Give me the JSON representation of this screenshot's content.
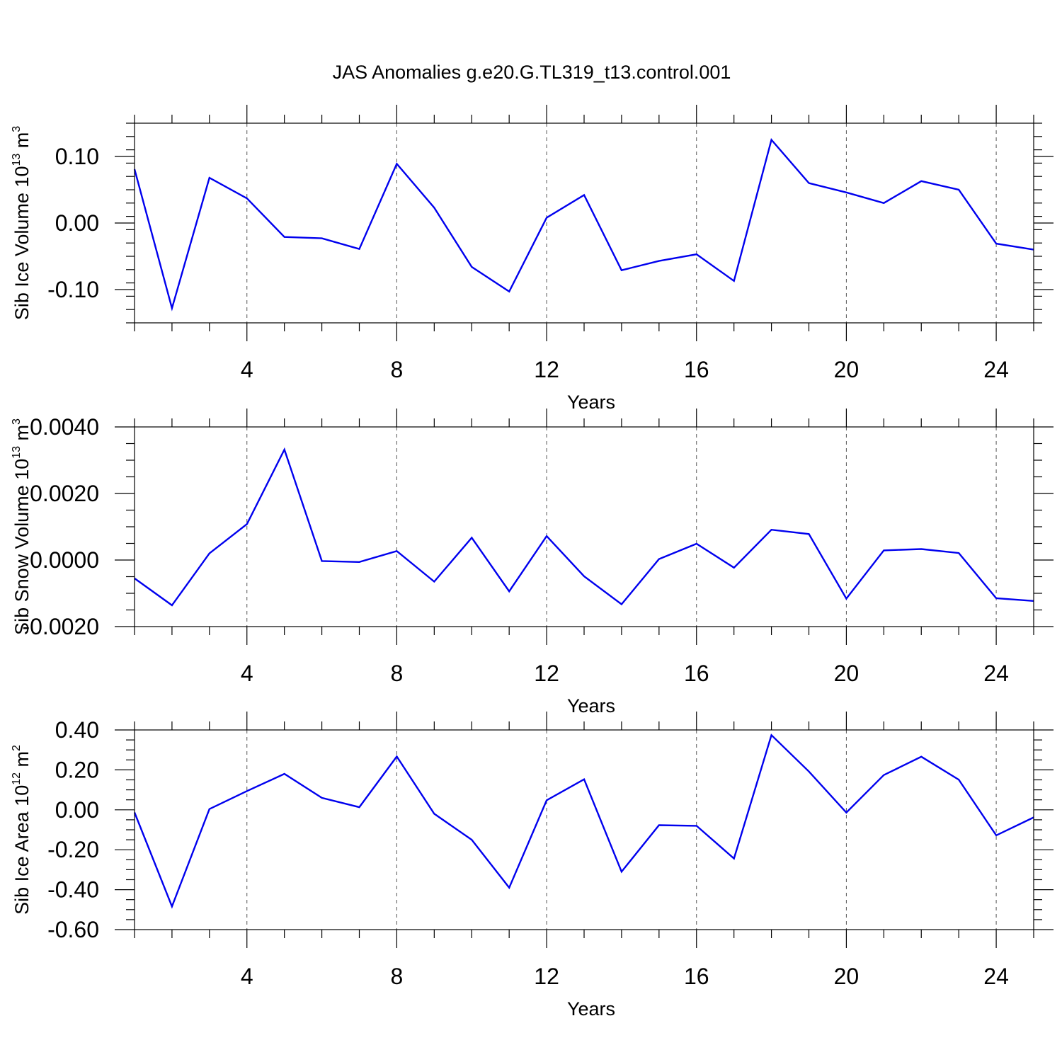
{
  "title": "JAS Anomalies g.e20.G.TL319_t13.control.001",
  "chart_data": [
    {
      "type": "line",
      "name": "ice-volume",
      "ylabel": "Sib Ice Volume 10",
      "ylabel_sup": "13",
      "ylabel_unit": "m",
      "ylabel_unit_sup": "3",
      "xlabel": "Years",
      "xlim": [
        1,
        25
      ],
      "ylim": [
        -0.15,
        0.15
      ],
      "x_ticks": [
        4,
        8,
        12,
        16,
        20,
        24
      ],
      "x_tick_labels": [
        "4",
        "8",
        "12",
        "16",
        "20",
        "24"
      ],
      "y_ticks": [
        -0.1,
        0.0,
        0.1
      ],
      "y_tick_labels": [
        "-0.10",
        "0.00",
        "0.10"
      ],
      "y_minor_step": 0.02,
      "grid": "vertical dashed",
      "x": [
        1,
        2,
        3,
        4,
        5,
        6,
        7,
        8,
        9,
        10,
        11,
        12,
        13,
        14,
        15,
        16,
        17,
        18,
        19,
        20,
        21,
        22,
        23,
        24,
        25
      ],
      "values": [
        0.081,
        -0.128,
        0.068,
        0.037,
        -0.021,
        -0.023,
        -0.039,
        0.089,
        0.023,
        -0.066,
        -0.103,
        0.008,
        0.042,
        -0.071,
        -0.057,
        -0.047,
        -0.087,
        0.125,
        0.06,
        0.046,
        0.03,
        0.063,
        0.05,
        -0.031,
        -0.04
      ],
      "color": "#0000ee"
    },
    {
      "type": "line",
      "name": "snow-volume",
      "ylabel": "Sib Snow Volume 10",
      "ylabel_sup": "13",
      "ylabel_unit": "m",
      "ylabel_unit_sup": "3",
      "xlabel": "Years",
      "xlim": [
        1,
        25
      ],
      "ylim": [
        -0.002,
        0.004
      ],
      "x_ticks": [
        4,
        8,
        12,
        16,
        20,
        24
      ],
      "x_tick_labels": [
        "4",
        "8",
        "12",
        "16",
        "20",
        "24"
      ],
      "y_ticks": [
        -0.002,
        0.0,
        0.002,
        0.004
      ],
      "y_tick_labels": [
        "-0.0020",
        "0.0000",
        "0.0020",
        "0.0040"
      ],
      "y_minor_step": 0.0005,
      "grid": "vertical dashed",
      "x": [
        1,
        2,
        3,
        4,
        5,
        6,
        7,
        8,
        9,
        10,
        11,
        12,
        13,
        14,
        15,
        16,
        17,
        18,
        19,
        20,
        21,
        22,
        23,
        24,
        25
      ],
      "values": [
        -0.00055,
        -0.00136,
        0.0002,
        0.00108,
        0.00332,
        -3e-05,
        -6e-05,
        0.00027,
        -0.00065,
        0.00067,
        -0.00094,
        0.00072,
        -0.00049,
        -0.00133,
        3e-05,
        0.00049,
        -0.00023,
        0.00091,
        0.00078,
        -0.00116,
        0.00029,
        0.00033,
        0.00021,
        -0.00115,
        -0.00123
      ],
      "color": "#0000ee"
    },
    {
      "type": "line",
      "name": "ice-area",
      "ylabel": "Sib Ice Area 10",
      "ylabel_sup": "12",
      "ylabel_unit": "m",
      "ylabel_unit_sup": "2",
      "xlabel": "Years",
      "xlim": [
        1,
        25
      ],
      "ylim": [
        -0.6,
        0.4
      ],
      "x_ticks": [
        4,
        8,
        12,
        16,
        20,
        24
      ],
      "x_tick_labels": [
        "4",
        "8",
        "12",
        "16",
        "20",
        "24"
      ],
      "y_ticks": [
        -0.6,
        -0.4,
        -0.2,
        0.0,
        0.2,
        0.4
      ],
      "y_tick_labels": [
        "-0.60",
        "-0.40",
        "-0.20",
        "0.00",
        "0.20",
        "0.40"
      ],
      "y_minor_step": 0.05,
      "grid": "vertical dashed",
      "x": [
        1,
        2,
        3,
        4,
        5,
        6,
        7,
        8,
        9,
        10,
        11,
        12,
        13,
        14,
        15,
        16,
        17,
        18,
        19,
        20,
        21,
        22,
        23,
        24,
        25
      ],
      "values": [
        -0.013,
        -0.484,
        0.004,
        0.094,
        0.18,
        0.06,
        0.013,
        0.267,
        -0.02,
        -0.15,
        -0.39,
        0.048,
        0.153,
        -0.31,
        -0.077,
        -0.08,
        -0.244,
        0.374,
        0.192,
        -0.014,
        0.174,
        0.266,
        0.151,
        -0.128,
        -0.038
      ],
      "color": "#0000ee"
    }
  ]
}
